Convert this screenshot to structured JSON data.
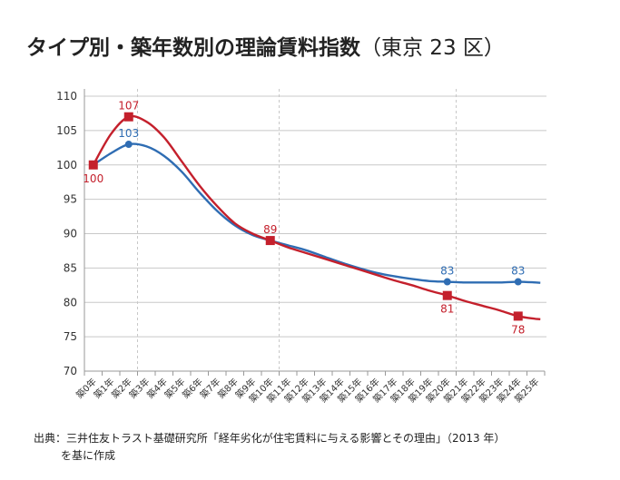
{
  "title": "タイプ別・築年数別の理論賃料指数",
  "title_suffix": "（東京 23 区）",
  "source_line1": "出典：三井住友トラスト基礎研究所「経年劣化が住宅賃料に与える影響とその理由」（2013 年）",
  "source_line2": "を基に作成",
  "chart_data": {
    "type": "line",
    "title": "タイプ別・築年数別の理論賃料指数（東京 23 区）",
    "xlabel": "",
    "ylabel": "",
    "ylim": [
      70,
      110
    ],
    "yticks": [
      70,
      75,
      80,
      85,
      90,
      95,
      100,
      105,
      110
    ],
    "grid": true,
    "categories": [
      "築0年",
      "築1年",
      "築2年",
      "築3年",
      "築4年",
      "築5年",
      "築6年",
      "築7年",
      "築8年",
      "築9年",
      "築10年",
      "築11年",
      "築12年",
      "築13年",
      "築14年",
      "築15年",
      "築16年",
      "築17年",
      "築18年",
      "築19年",
      "築20年",
      "築21年",
      "築22年",
      "築23年",
      "築24年",
      "築25年"
    ],
    "dashed_gridlines_at": [
      3,
      11,
      21
    ],
    "series": [
      {
        "name": "red",
        "color": "#c4202c",
        "marker": "square",
        "values": [
          100,
          104.5,
          107,
          106.3,
          104,
          100.5,
          97,
          94,
          91.5,
          90,
          89,
          88,
          87.2,
          86.4,
          85.6,
          84.8,
          84,
          83.2,
          82.5,
          81.7,
          81,
          80.2,
          79.5,
          78.8,
          78,
          77.6
        ],
        "labeled_points": [
          {
            "index": 0,
            "label": "100",
            "position": "below"
          },
          {
            "index": 2,
            "label": "107",
            "position": "above"
          },
          {
            "index": 10,
            "label": "89",
            "position": "above"
          },
          {
            "index": 20,
            "label": "81",
            "position": "below"
          },
          {
            "index": 24,
            "label": "78",
            "position": "below"
          }
        ]
      },
      {
        "name": "blue",
        "color": "#2f6db3",
        "marker": "circle",
        "values": [
          100,
          101.7,
          103,
          102.7,
          101.3,
          99,
          96,
          93.3,
          91.2,
          89.8,
          89,
          88.3,
          87.6,
          86.7,
          85.8,
          85,
          84.3,
          83.8,
          83.4,
          83.1,
          83,
          82.9,
          82.9,
          82.9,
          83,
          82.9
        ],
        "labeled_points": [
          {
            "index": 2,
            "label": "103",
            "position": "above"
          },
          {
            "index": 20,
            "label": "83",
            "position": "above"
          },
          {
            "index": 24,
            "label": "83",
            "position": "above"
          }
        ]
      }
    ]
  }
}
